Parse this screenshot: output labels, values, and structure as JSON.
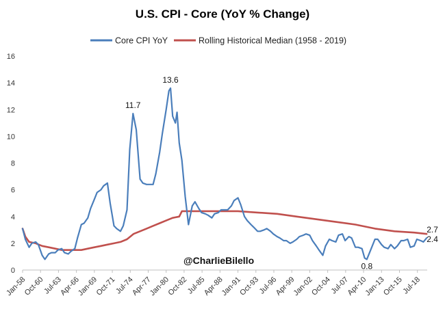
{
  "chart_data": {
    "type": "line",
    "title": "U.S. CPI - Core (YoY % Change)",
    "xlabel": "",
    "ylabel": "",
    "ylim": [
      0,
      16
    ],
    "yticks": [
      0,
      2,
      4,
      6,
      8,
      10,
      12,
      14,
      16
    ],
    "x_ticks": [
      "Jan-58",
      "Oct-60",
      "Jul-63",
      "Apr-66",
      "Jan-69",
      "Oct-71",
      "Jul-74",
      "Apr-77",
      "Jan-80",
      "Oct-82",
      "Jul-85",
      "Apr-88",
      "Jan-91",
      "Oct-93",
      "Jul-96",
      "Apr-99",
      "Jan-02",
      "Oct-04",
      "Jul-07",
      "Apr-10",
      "Jan-13",
      "Oct-15",
      "Jul-18"
    ],
    "grid": false,
    "legend_position": "top",
    "series": [
      {
        "name": "Core CPI YoY",
        "color": "#4a7ebb",
        "x": [
          "1958-01",
          "1958-06",
          "1959-01",
          "1959-06",
          "1960-01",
          "1960-06",
          "1961-01",
          "1961-06",
          "1962-01",
          "1962-06",
          "1963-01",
          "1963-06",
          "1964-01",
          "1964-06",
          "1965-01",
          "1965-06",
          "1966-01",
          "1966-06",
          "1967-01",
          "1967-06",
          "1968-01",
          "1968-06",
          "1969-01",
          "1969-06",
          "1970-01",
          "1970-06",
          "1971-01",
          "1971-06",
          "1972-01",
          "1972-06",
          "1973-01",
          "1973-06",
          "1974-01",
          "1974-06",
          "1974-12",
          "1975-06",
          "1976-01",
          "1976-06",
          "1977-01",
          "1977-06",
          "1978-01",
          "1978-06",
          "1979-01",
          "1979-06",
          "1980-01",
          "1980-06",
          "1980-09",
          "1981-01",
          "1981-06",
          "1981-09",
          "1982-01",
          "1982-06",
          "1982-12",
          "1983-06",
          "1984-01",
          "1984-06",
          "1985-01",
          "1985-06",
          "1986-01",
          "1986-06",
          "1987-01",
          "1987-06",
          "1988-01",
          "1988-06",
          "1989-01",
          "1989-06",
          "1990-01",
          "1990-06",
          "1991-01",
          "1991-06",
          "1992-01",
          "1992-06",
          "1993-01",
          "1993-06",
          "1994-01",
          "1994-06",
          "1995-01",
          "1995-06",
          "1996-01",
          "1996-06",
          "1997-01",
          "1997-06",
          "1998-01",
          "1998-06",
          "1999-01",
          "1999-06",
          "2000-01",
          "2000-06",
          "2001-01",
          "2001-06",
          "2002-01",
          "2002-06",
          "2003-01",
          "2003-06",
          "2004-01",
          "2004-06",
          "2005-01",
          "2005-06",
          "2006-01",
          "2006-06",
          "2007-01",
          "2007-06",
          "2008-01",
          "2008-06",
          "2009-01",
          "2009-06",
          "2010-01",
          "2010-06",
          "2010-10",
          "2011-06",
          "2012-01",
          "2012-06",
          "2013-01",
          "2013-06",
          "2014-01",
          "2014-06",
          "2015-01",
          "2015-06",
          "2016-01",
          "2016-06",
          "2017-01",
          "2017-06",
          "2018-01",
          "2018-06",
          "2019-01",
          "2019-06",
          "2019-12"
        ],
        "values": [
          3.1,
          2.3,
          1.7,
          2.0,
          2.1,
          1.9,
          1.1,
          0.8,
          1.2,
          1.3,
          1.3,
          1.5,
          1.6,
          1.3,
          1.2,
          1.4,
          1.6,
          2.4,
          3.4,
          3.5,
          3.9,
          4.6,
          5.3,
          5.8,
          6.0,
          6.3,
          6.5,
          5.0,
          3.3,
          3.1,
          2.9,
          3.3,
          4.5,
          9.0,
          11.7,
          10.5,
          6.8,
          6.5,
          6.4,
          6.4,
          6.4,
          7.2,
          8.8,
          10.2,
          12.0,
          13.4,
          13.6,
          11.5,
          11.0,
          11.8,
          9.5,
          8.2,
          5.5,
          3.4,
          4.8,
          5.1,
          4.6,
          4.3,
          4.2,
          4.1,
          3.9,
          4.2,
          4.3,
          4.5,
          4.5,
          4.5,
          4.8,
          5.2,
          5.4,
          4.9,
          4.0,
          3.7,
          3.4,
          3.2,
          2.9,
          2.9,
          3.0,
          3.1,
          2.9,
          2.7,
          2.5,
          2.4,
          2.2,
          2.2,
          2.0,
          2.1,
          2.3,
          2.5,
          2.6,
          2.7,
          2.6,
          2.2,
          1.8,
          1.5,
          1.1,
          1.8,
          2.3,
          2.2,
          2.1,
          2.6,
          2.7,
          2.2,
          2.5,
          2.4,
          1.7,
          1.7,
          1.6,
          0.9,
          0.8,
          1.6,
          2.3,
          2.3,
          1.9,
          1.7,
          1.6,
          1.9,
          1.6,
          1.8,
          2.2,
          2.2,
          2.3,
          1.7,
          1.8,
          2.3,
          2.2,
          2.1,
          2.4
        ]
      },
      {
        "name": "Rolling Historical Median (1958 - 2019)",
        "color": "#c0504d",
        "x": [
          "1958-01",
          "1958-06",
          "1959-01",
          "1960-01",
          "1961-01",
          "1962-01",
          "1963-01",
          "1964-01",
          "1965-01",
          "1966-01",
          "1967-01",
          "1968-01",
          "1969-01",
          "1970-01",
          "1971-01",
          "1972-01",
          "1973-01",
          "1974-01",
          "1975-01",
          "1976-01",
          "1977-01",
          "1978-01",
          "1979-01",
          "1980-01",
          "1981-01",
          "1982-01",
          "1982-06",
          "1983-01",
          "1984-01",
          "1985-01",
          "1988-01",
          "1991-01",
          "1994-01",
          "1997-01",
          "2000-01",
          "2003-01",
          "2006-01",
          "2009-01",
          "2012-01",
          "2015-01",
          "2018-01",
          "2019-12"
        ],
        "values": [
          3.1,
          2.5,
          2.1,
          2.0,
          1.8,
          1.7,
          1.6,
          1.5,
          1.5,
          1.5,
          1.5,
          1.6,
          1.7,
          1.8,
          1.9,
          2.0,
          2.1,
          2.3,
          2.7,
          2.9,
          3.1,
          3.3,
          3.5,
          3.7,
          3.9,
          4.0,
          4.4,
          4.4,
          4.4,
          4.4,
          4.4,
          4.4,
          4.3,
          4.2,
          4.0,
          3.8,
          3.6,
          3.4,
          3.1,
          2.9,
          2.8,
          2.7
        ]
      }
    ],
    "annotations": [
      {
        "text": "11.7",
        "x": "1974-12",
        "y": 11.7
      },
      {
        "text": "13.6",
        "x": "1980-09",
        "y": 13.6
      },
      {
        "text": "0.8",
        "x": "2010-10",
        "y": 0.8
      },
      {
        "text": "2.7",
        "x": "2019-12",
        "y": 2.7
      },
      {
        "text": "2.4",
        "x": "2019-12",
        "y": 2.4
      }
    ],
    "watermark": "@CharlieBilello"
  }
}
